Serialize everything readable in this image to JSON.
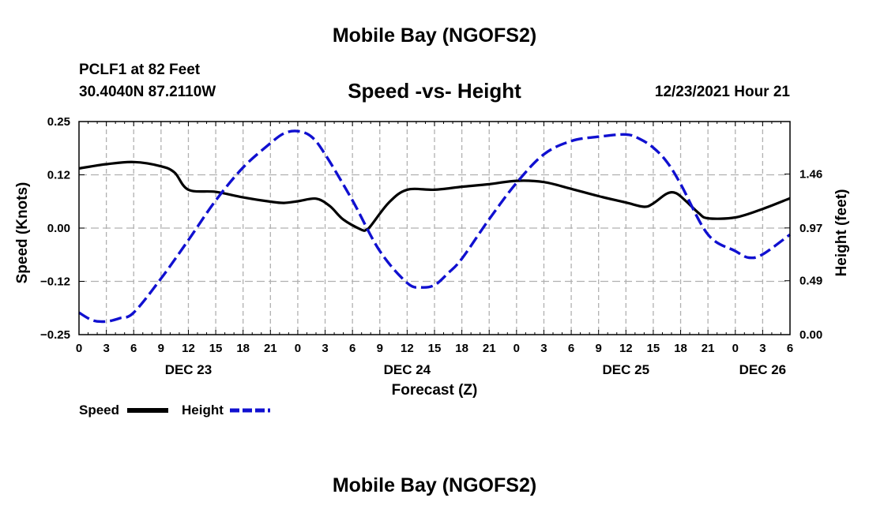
{
  "page": {
    "title_top": "Mobile Bay (NGOFS2)",
    "title_bottom": "Mobile Bay (NGOFS2)",
    "station": "PCLF1 at 82 Feet",
    "coords": "30.4040N  87.2110W",
    "date": "12/23/2021 Hour 21"
  },
  "legend": {
    "speed_label": "Speed",
    "height_label": "Height"
  },
  "colors": {
    "speed": "#000000",
    "height": "#1010d0",
    "grid": "#b0b0b0"
  },
  "chart_data": {
    "type": "line",
    "title": "Speed -vs- Height",
    "xlabel": "Forecast (Z)",
    "ylabel_left": "Speed (Knots)",
    "ylabel_right": "Height (feet)",
    "x_range_hours": [
      0,
      78
    ],
    "ylim_left": [
      -0.25,
      0.25
    ],
    "ylim_right": [
      0.0,
      1.9375
    ],
    "x_tick_hours": [
      0,
      3,
      6,
      9,
      12,
      15,
      18,
      21,
      24,
      27,
      30,
      33,
      36,
      39,
      42,
      45,
      48,
      51,
      54,
      57,
      60,
      63,
      66,
      69,
      72,
      75,
      78
    ],
    "x_tick_labels": [
      "0",
      "3",
      "6",
      "9",
      "12",
      "15",
      "18",
      "21",
      "0",
      "3",
      "6",
      "9",
      "12",
      "15",
      "18",
      "21",
      "0",
      "3",
      "6",
      "9",
      "12",
      "15",
      "18",
      "21",
      "0",
      "3",
      "6"
    ],
    "date_labels": [
      {
        "text": "DEC 23",
        "hour": 12
      },
      {
        "text": "DEC 24",
        "hour": 36
      },
      {
        "text": "DEC 25",
        "hour": 60
      },
      {
        "text": "DEC 26",
        "hour": 75
      }
    ],
    "left_ticks": [
      {
        "value": 0.25,
        "label": "0.25"
      },
      {
        "value": 0.125,
        "label": "0.12"
      },
      {
        "value": 0.0,
        "label": "0.00"
      },
      {
        "value": -0.125,
        "label": "−0.12"
      },
      {
        "value": -0.25,
        "label": "−0.25"
      }
    ],
    "right_ticks": [
      {
        "value": 1.46,
        "label": "1.46"
      },
      {
        "value": 0.97,
        "label": "0.97"
      },
      {
        "value": 0.49,
        "label": "0.49"
      },
      {
        "value": 0.0,
        "label": "0.00"
      }
    ],
    "series": [
      {
        "name": "Speed",
        "axis": "left",
        "style": "solid",
        "x": [
          0,
          3,
          6,
          9,
          10.5,
          12,
          15,
          18,
          21,
          22.5,
          24,
          26,
          27.5,
          29,
          31,
          31.5,
          32,
          34,
          36,
          39,
          42,
          45,
          48,
          51,
          54,
          57,
          60,
          62,
          63,
          64.5,
          65.5,
          66.5,
          68,
          69,
          72,
          75,
          78
        ],
        "y": [
          0.14,
          0.15,
          0.155,
          0.145,
          0.13,
          0.09,
          0.085,
          0.072,
          0.062,
          0.059,
          0.063,
          0.069,
          0.052,
          0.02,
          -0.004,
          -0.004,
          0.005,
          0.06,
          0.09,
          0.09,
          0.097,
          0.103,
          0.111,
          0.108,
          0.092,
          0.075,
          0.06,
          0.05,
          0.058,
          0.081,
          0.082,
          0.065,
          0.035,
          0.023,
          0.025,
          0.045,
          0.07
        ]
      },
      {
        "name": "Height",
        "axis": "right",
        "style": "dashed",
        "x": [
          0,
          1.5,
          3,
          4.5,
          6,
          9,
          12,
          15,
          18,
          21,
          22.5,
          24,
          25.5,
          27,
          30,
          33,
          36,
          37.5,
          39,
          40.5,
          42,
          45,
          48,
          51,
          54,
          57,
          60,
          61.5,
          63,
          64.5,
          66,
          69,
          72,
          73.5,
          75,
          78
        ],
        "y": [
          0.2,
          0.13,
          0.12,
          0.15,
          0.2,
          0.51,
          0.86,
          1.22,
          1.52,
          1.74,
          1.83,
          1.85,
          1.8,
          1.64,
          1.22,
          0.76,
          0.47,
          0.43,
          0.45,
          0.56,
          0.69,
          1.05,
          1.38,
          1.64,
          1.76,
          1.8,
          1.82,
          1.78,
          1.7,
          1.57,
          1.37,
          0.91,
          0.76,
          0.7,
          0.73,
          0.91
        ]
      }
    ]
  }
}
